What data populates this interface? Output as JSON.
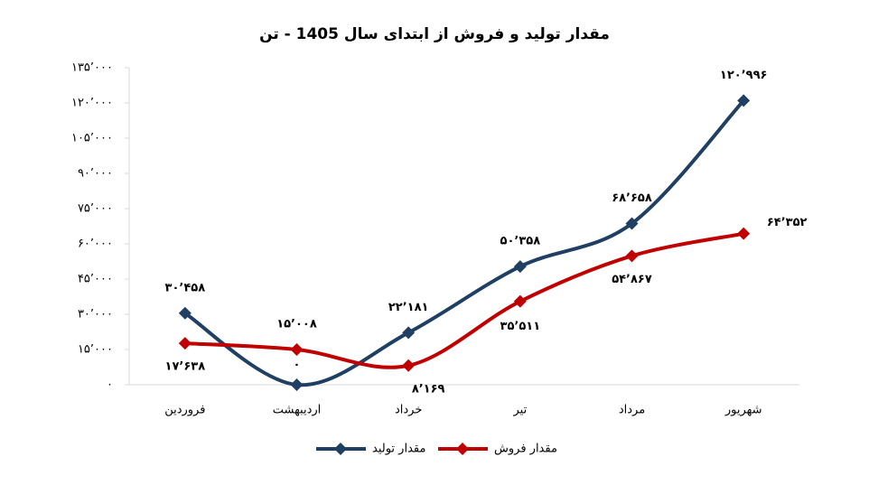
{
  "chart_data": {
    "type": "line",
    "title": "مقدار تولید و فروش از ابتدای سال 1405 - تن",
    "categories": [
      "فروردین",
      "اردیبهشت",
      "خرداد",
      "تیر",
      "مرداد",
      "شهریور"
    ],
    "series": [
      {
        "name": "مقدار تولید",
        "color": "#1f3f63",
        "values": [
          30458,
          0,
          22181,
          50358,
          68658,
          120996
        ],
        "value_labels": [
          "۳۰٬۴۵۸",
          "۰",
          "۲۲٬۱۸۱",
          "۵۰٬۳۵۸",
          "۶۸٬۶۵۸",
          "۱۲۰٬۹۹۶"
        ]
      },
      {
        "name": "مقدار فروش",
        "color": "#c00000",
        "values": [
          17638,
          15008,
          8169,
          35511,
          54867,
          64352
        ],
        "value_labels": [
          "۱۷٬۶۳۸",
          "۱۵٬۰۰۸",
          "۸٬۱۶۹",
          "۳۵٬۵۱۱",
          "۵۴٬۸۶۷",
          "۶۴٬۳۵۲"
        ]
      }
    ],
    "ylim": [
      0,
      135000
    ],
    "yticks": [
      {
        "value": 0,
        "label": "۰"
      },
      {
        "value": 15000,
        "label": "۱۵٬۰۰۰"
      },
      {
        "value": 30000,
        "label": "۳۰٬۰۰۰"
      },
      {
        "value": 45000,
        "label": "۴۵٬۰۰۰"
      },
      {
        "value": 60000,
        "label": "۶۰٬۰۰۰"
      },
      {
        "value": 75000,
        "label": "۷۵٬۰۰۰"
      },
      {
        "value": 90000,
        "label": "۹۰٬۰۰۰"
      },
      {
        "value": 105000,
        "label": "۱۰۵٬۰۰۰"
      },
      {
        "value": 120000,
        "label": "۱۲۰٬۰۰۰"
      },
      {
        "value": 135000,
        "label": "۱۳۵٬۰۰۰"
      }
    ],
    "grid": false,
    "legend": "bottom",
    "smooth": true
  }
}
